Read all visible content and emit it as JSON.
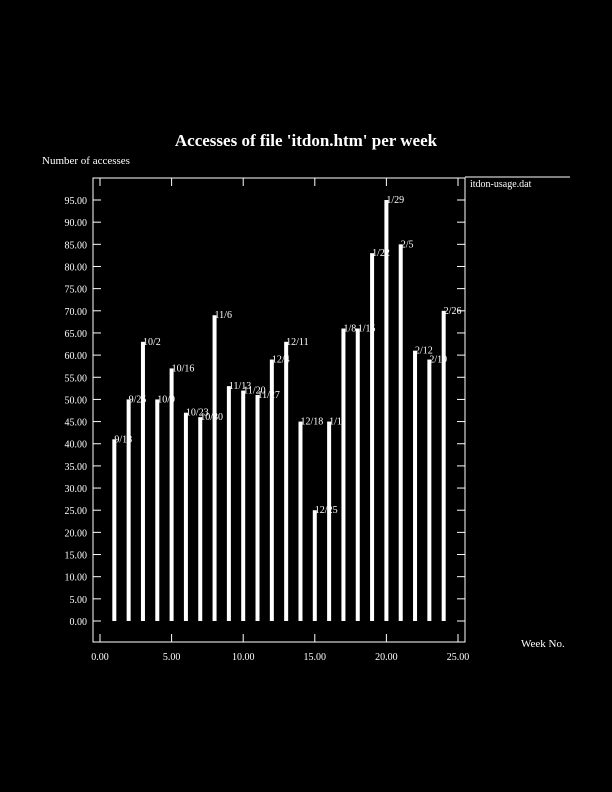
{
  "chart_data": {
    "type": "bar",
    "title": "Accesses of file 'itdon.htm' per week",
    "ylabel": "Number of accesses",
    "xlabel": "Week No.",
    "legend": {
      "label": "itdon-usage.dat",
      "placement": "top-right-outside"
    },
    "xlim": [
      0,
      25
    ],
    "ylim": [
      0,
      95
    ],
    "xticks": [
      "0.00",
      "5.00",
      "10.00",
      "15.00",
      "20.00",
      "25.00"
    ],
    "yticks": [
      "0.00",
      "5.00",
      "10.00",
      "15.00",
      "20.00",
      "25.00",
      "30.00",
      "35.00",
      "40.00",
      "45.00",
      "50.00",
      "55.00",
      "60.00",
      "65.00",
      "70.00",
      "75.00",
      "80.00",
      "85.00",
      "90.00",
      "95.00"
    ],
    "x": [
      1,
      2,
      3,
      4,
      5,
      6,
      7,
      8,
      9,
      10,
      11,
      12,
      13,
      14,
      15,
      16,
      17,
      18,
      19,
      20,
      21,
      22,
      23,
      24
    ],
    "values": [
      41,
      50,
      63,
      50,
      57,
      47,
      46,
      69,
      53,
      52,
      51,
      59,
      63,
      45,
      25,
      45,
      66,
      66,
      83,
      95,
      85,
      61,
      59,
      70
    ],
    "bar_labels": [
      "9/18",
      "9/25",
      "10/2",
      "10/9",
      "10/16",
      "10/23",
      "10/30",
      "11/6",
      "11/13",
      "11/20",
      "11/27",
      "12/4",
      "12/11",
      "12/18",
      "12/25",
      "1/1",
      "1/8",
      "1/15",
      "1/22",
      "1/29",
      "2/5",
      "2/12",
      "2/19",
      "2/26"
    ],
    "grid": false,
    "colors": {
      "background": "#000000",
      "foreground": "#ffffff"
    }
  }
}
